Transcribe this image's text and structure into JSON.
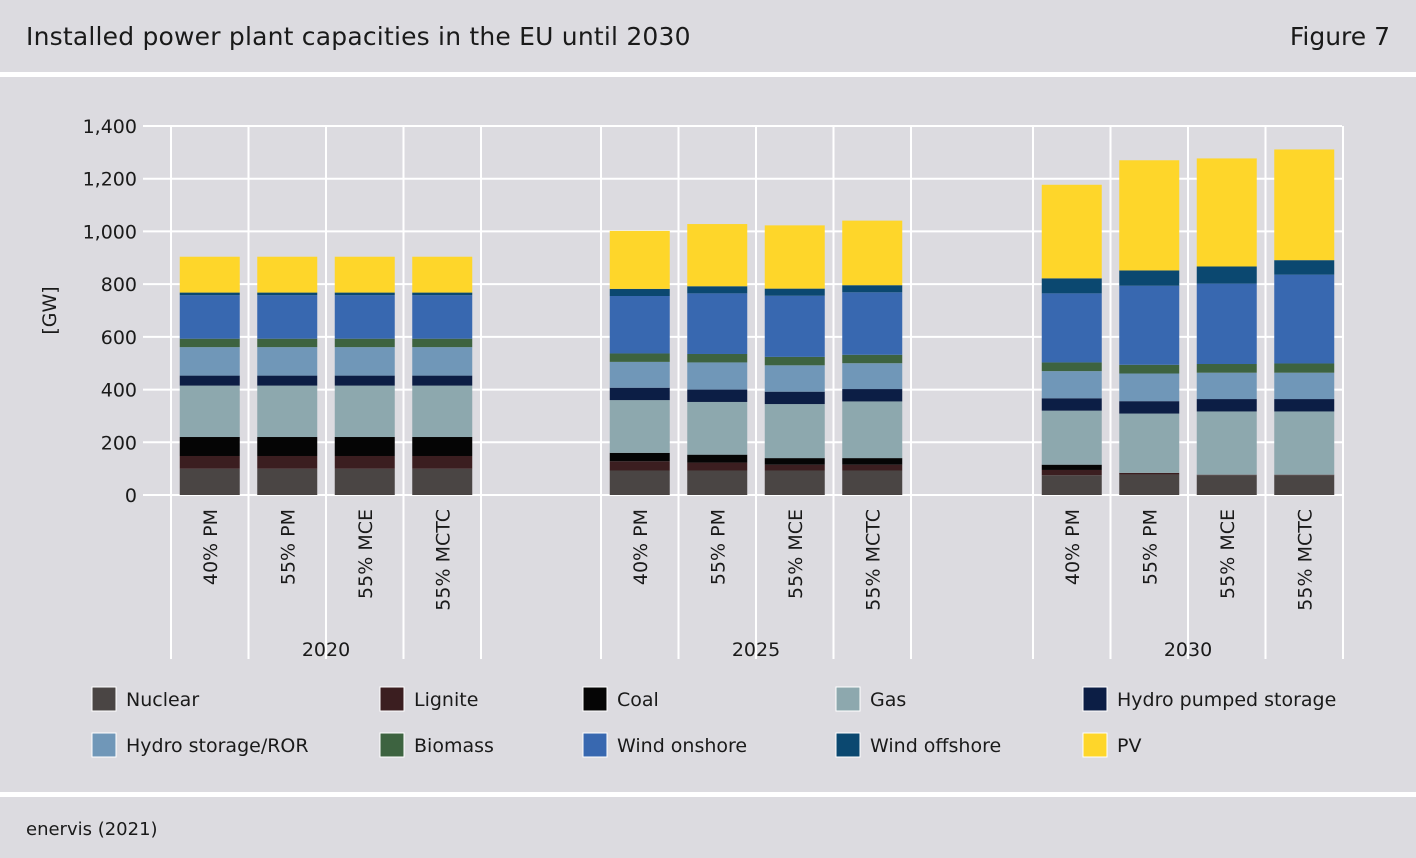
{
  "header": {
    "title": "Installed power plant capacities in the EU until 2030",
    "figure_label": "Figure 7"
  },
  "footer": {
    "source": "enervis (2021)"
  },
  "chart_data": {
    "type": "bar",
    "stacked": true,
    "title": "Installed power plant capacities in the EU until 2030",
    "ylabel": "[GW]",
    "xlabel": "",
    "ylim": [
      0,
      1400
    ],
    "yticks": [
      0,
      200,
      400,
      600,
      800,
      1000,
      1200,
      1400
    ],
    "ytick_labels": [
      "0",
      "200",
      "400",
      "600",
      "800",
      "1,000",
      "1,200",
      "1,400"
    ],
    "grid": true,
    "legend_position": "bottom",
    "groups": [
      {
        "label": "2020",
        "categories": [
          "40% PM",
          "55% PM",
          "55% MCE",
          "55% MCTC"
        ]
      },
      {
        "label": "2025",
        "categories": [
          "40% PM",
          "55% PM",
          "55% MCE",
          "55% MCTC"
        ]
      },
      {
        "label": "2030",
        "categories": [
          "40% PM",
          "55% PM",
          "55% MCE",
          "55% MCTC"
        ]
      }
    ],
    "series": [
      {
        "name": "Nuclear",
        "color": "#4a4544",
        "values": [
          100,
          100,
          100,
          100,
          93,
          93,
          93,
          93,
          75,
          78,
          75,
          75
        ]
      },
      {
        "name": "Lignite",
        "color": "#3b1e20",
        "values": [
          48,
          48,
          48,
          48,
          35,
          30,
          22,
          22,
          20,
          6,
          2,
          2
        ]
      },
      {
        "name": "Coal",
        "color": "#050505",
        "values": [
          72,
          72,
          72,
          72,
          32,
          30,
          25,
          25,
          20,
          0,
          0,
          0
        ]
      },
      {
        "name": "Gas",
        "color": "#8da8ae",
        "values": [
          195,
          195,
          195,
          195,
          200,
          200,
          205,
          215,
          205,
          225,
          240,
          240
        ]
      },
      {
        "name": "Hydro pumped storage",
        "color": "#0c1e45",
        "values": [
          38,
          38,
          38,
          38,
          47,
          47,
          47,
          47,
          47,
          47,
          47,
          47
        ]
      },
      {
        "name": "Hydro storage/ROR",
        "color": "#7097b8",
        "values": [
          108,
          108,
          108,
          108,
          98,
          103,
          100,
          98,
          103,
          105,
          100,
          100
        ]
      },
      {
        "name": "Biomass",
        "color": "#3d6340",
        "values": [
          32,
          32,
          32,
          32,
          32,
          32,
          32,
          32,
          33,
          33,
          33,
          35
        ]
      },
      {
        "name": "Wind onshore",
        "color": "#3868b0",
        "values": [
          165,
          165,
          165,
          165,
          218,
          230,
          232,
          237,
          262,
          300,
          305,
          337
        ]
      },
      {
        "name": "Wind offshore",
        "color": "#0b4870",
        "values": [
          10,
          10,
          10,
          10,
          27,
          27,
          27,
          27,
          57,
          58,
          65,
          55
        ]
      },
      {
        "name": "PV",
        "color": "#fed62a",
        "values": [
          136,
          136,
          136,
          136,
          220,
          236,
          240,
          245,
          355,
          418,
          410,
          420
        ]
      }
    ]
  }
}
